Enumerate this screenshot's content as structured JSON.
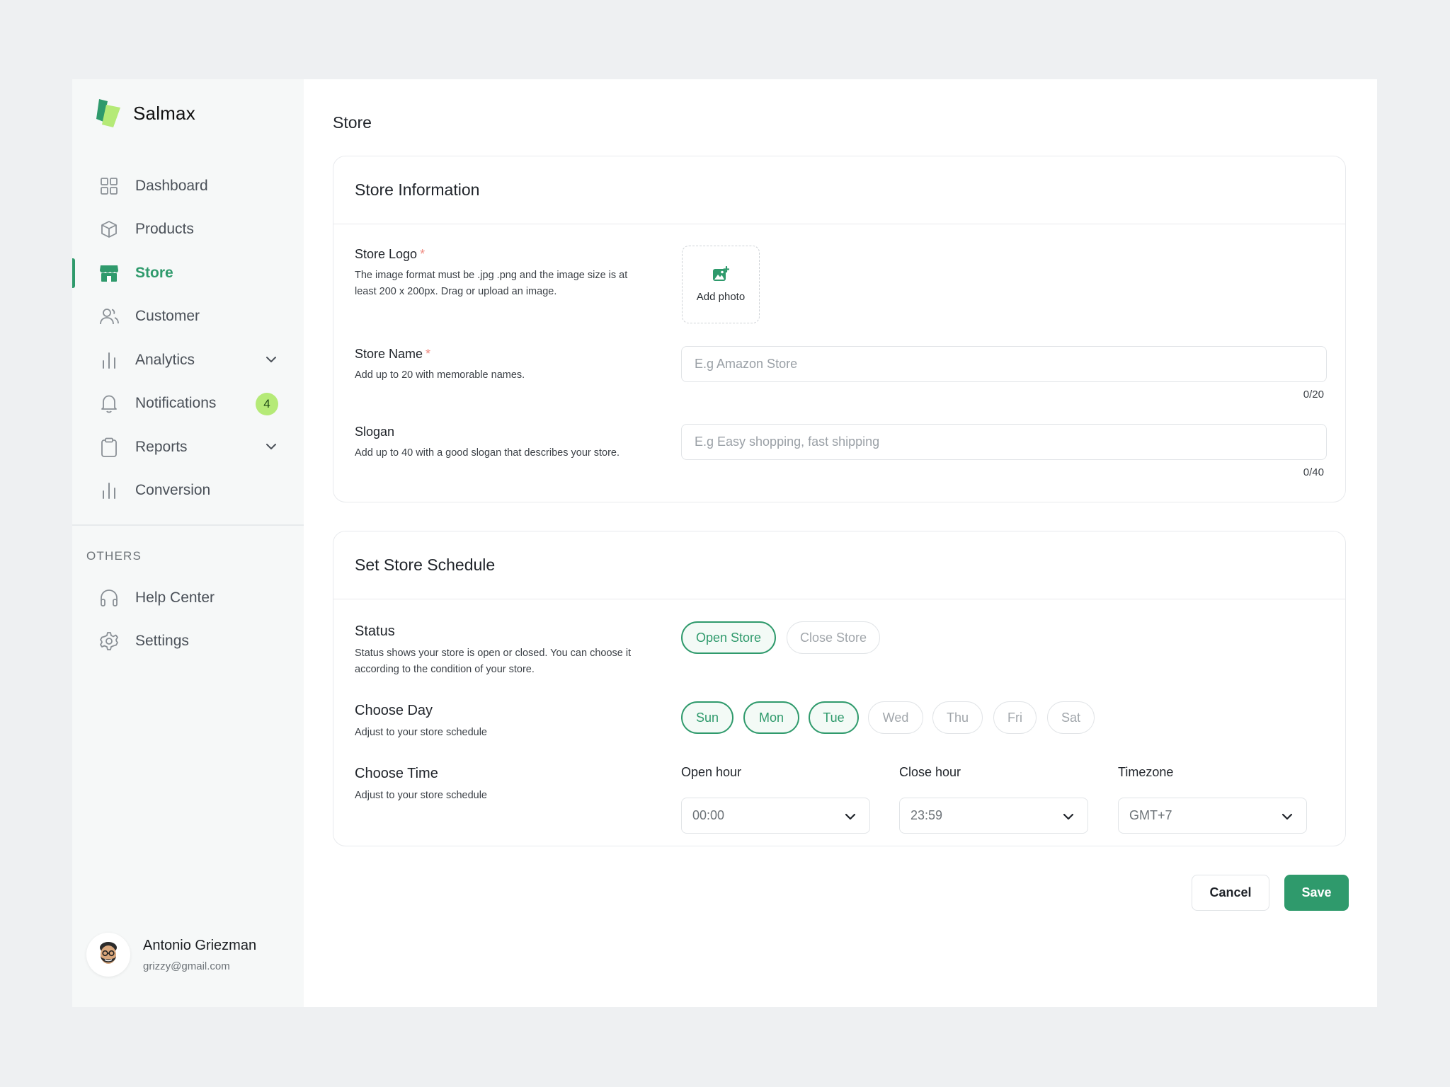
{
  "brand": {
    "name": "Salmax"
  },
  "sidebar": {
    "items": [
      {
        "label": "Dashboard",
        "icon": "grid-icon"
      },
      {
        "label": "Products",
        "icon": "box-icon"
      },
      {
        "label": "Store",
        "icon": "store-icon",
        "active": true
      },
      {
        "label": "Customer",
        "icon": "users-icon"
      },
      {
        "label": "Analytics",
        "icon": "bar-chart-icon",
        "expandable": true
      },
      {
        "label": "Notifications",
        "icon": "bell-icon",
        "badge": "4"
      },
      {
        "label": "Reports",
        "icon": "clipboard-icon",
        "expandable": true
      },
      {
        "label": "Conversion",
        "icon": "bar-chart-icon"
      }
    ],
    "others_label": "OTHERS",
    "others": [
      {
        "label": "Help Center",
        "icon": "headphones-icon"
      },
      {
        "label": "Settings",
        "icon": "gear-icon"
      }
    ],
    "user": {
      "name": "Antonio Griezman",
      "email": "grizzy@gmail.com"
    }
  },
  "page": {
    "title": "Store"
  },
  "store_info": {
    "title": "Store Information",
    "logo": {
      "label": "Store Logo",
      "required_mark": "*",
      "desc": "The image format must be .jpg .png and the image size is at least 200 x 200px. Drag or upload an image.",
      "add_label": "Add photo"
    },
    "name": {
      "label": "Store Name",
      "required_mark": "*",
      "desc": "Add up to 20 with memorable names.",
      "placeholder": "E.g Amazon Store",
      "counter": "0/20"
    },
    "slogan": {
      "label": "Slogan",
      "desc": "Add up to 40 with a good slogan that describes your store.",
      "placeholder": "E.g Easy shopping, fast shipping",
      "counter": "0/40"
    }
  },
  "schedule": {
    "title": "Set Store Schedule",
    "status": {
      "label": "Status",
      "desc": "Status shows your store is open or closed. You can choose it according to the condition of your store.",
      "open_label": "Open Store",
      "close_label": "Close Store",
      "selected": "open"
    },
    "day": {
      "label": "Choose Day",
      "desc": "Adjust to your store schedule",
      "days": [
        {
          "label": "Sun",
          "selected": true
        },
        {
          "label": "Mon",
          "selected": true
        },
        {
          "label": "Tue",
          "selected": true
        },
        {
          "label": "Wed",
          "selected": false
        },
        {
          "label": "Thu",
          "selected": false
        },
        {
          "label": "Fri",
          "selected": false
        },
        {
          "label": "Sat",
          "selected": false
        }
      ]
    },
    "time": {
      "label": "Choose Time",
      "desc": "Adjust to your store schedule",
      "open_hour_label": "Open hour",
      "open_hour": "00:00",
      "close_hour_label": "Close hour",
      "close_hour": "23:59",
      "timezone_label": "Timezone",
      "timezone": "GMT+7"
    }
  },
  "actions": {
    "cancel": "Cancel",
    "save": "Save"
  },
  "colors": {
    "accent": "#2f9a6c",
    "badge": "#b5ea77",
    "required": "#ef8a80"
  }
}
